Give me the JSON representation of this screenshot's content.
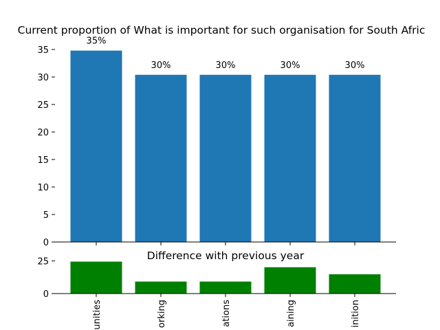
{
  "chart_data": [
    {
      "type": "bar",
      "title": "Current proportion of What is important for such organisation for South Afric",
      "categories": [
        "unities",
        "orking",
        "ations",
        "aining",
        "inition"
      ],
      "values": [
        34.8,
        30.4,
        30.4,
        30.4,
        30.4
      ],
      "data_labels": [
        "35%",
        "30%",
        "30%",
        "30%",
        "30%"
      ],
      "ylim": [
        0,
        35
      ],
      "yticks": [
        0,
        5,
        10,
        15,
        20,
        25,
        30,
        35
      ],
      "color": "#1f77b4",
      "grid": false
    },
    {
      "type": "bar",
      "title": "Difference with previous year",
      "categories": [
        "unities",
        "orking",
        "ations",
        "aining",
        "inition"
      ],
      "values": [
        24.5,
        9.2,
        9.2,
        20.2,
        14.8
      ],
      "ylim": [
        0,
        29
      ],
      "yticks": [
        0,
        25
      ],
      "color": "#008000",
      "grid": false
    }
  ]
}
